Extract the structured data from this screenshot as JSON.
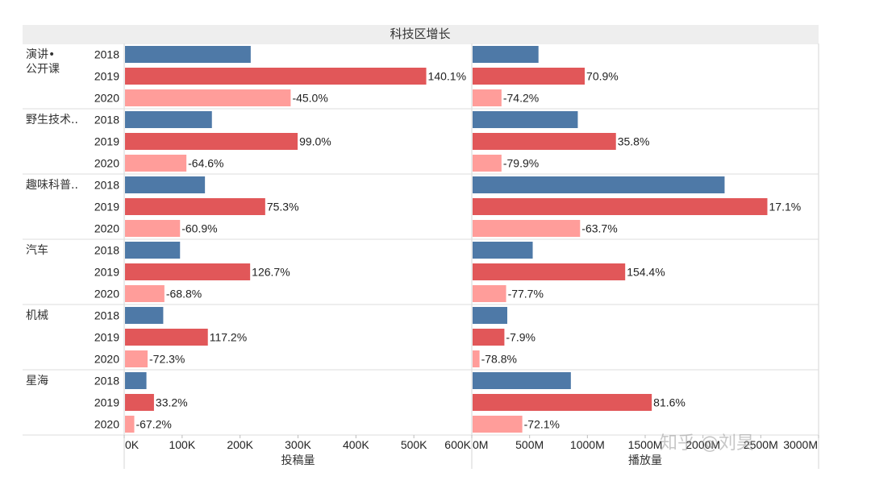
{
  "chart_data": {
    "type": "bar",
    "title": "科技区增长",
    "categories": [
      "演讲•\n公开课",
      "野生技术..",
      "趣味科普..",
      "汽车",
      "机械",
      "星海"
    ],
    "years": [
      "2018",
      "2019",
      "2020"
    ],
    "colors": {
      "2018": "#4e79a7",
      "2019": "#e15759",
      "2020": "#ff9d9a"
    },
    "panels": [
      {
        "measure": "投稿量",
        "xlim": [
          0,
          600000
        ],
        "ticks": [
          0,
          100000,
          200000,
          300000,
          400000,
          500000,
          600000
        ],
        "tick_labels": [
          "0K",
          "100K",
          "200K",
          "300K",
          "400K",
          "500K",
          "600K"
        ],
        "values": [
          [
            217000,
            520000,
            286000
          ],
          [
            150000,
            298000,
            106000
          ],
          [
            138000,
            242000,
            95000
          ],
          [
            95000,
            216000,
            68000
          ],
          [
            66000,
            143000,
            39000
          ],
          [
            37000,
            50000,
            16000
          ]
        ],
        "labels": [
          [
            "",
            "140.1%",
            "-45.0%"
          ],
          [
            "",
            "99.0%",
            "-64.6%"
          ],
          [
            "",
            "75.3%",
            "-60.9%"
          ],
          [
            "",
            "126.7%",
            "-68.8%"
          ],
          [
            "",
            "117.2%",
            "-72.3%"
          ],
          [
            "",
            "33.2%",
            "-67.2%"
          ]
        ]
      },
      {
        "measure": "播放量",
        "xlim": [
          0,
          3000000000
        ],
        "ticks": [
          0,
          500000000,
          1000000000,
          1500000000,
          2000000000,
          2500000000,
          3000000000
        ],
        "tick_labels": [
          "0M",
          "500M",
          "1000M",
          "1500M",
          "2000M",
          "2500M",
          "3000M"
        ],
        "values": [
          [
            570000000,
            970000000,
            250000000
          ],
          [
            910000000,
            1240000000,
            250000000
          ],
          [
            2180000000,
            2550000000,
            930000000
          ],
          [
            520000000,
            1320000000,
            290000000
          ],
          [
            300000000,
            275000000,
            60000000
          ],
          [
            850000000,
            1550000000,
            430000000
          ]
        ],
        "labels": [
          [
            "",
            "70.9%",
            "-74.2%"
          ],
          [
            "",
            "35.8%",
            "-79.9%"
          ],
          [
            "",
            "17.1%",
            "-63.7%"
          ],
          [
            "",
            "154.4%",
            "-77.7%"
          ],
          [
            "",
            "-7.9%",
            "-78.8%"
          ],
          [
            "",
            "81.6%",
            "-72.1%"
          ]
        ]
      }
    ]
  },
  "watermark": "知乎 @刘昊"
}
